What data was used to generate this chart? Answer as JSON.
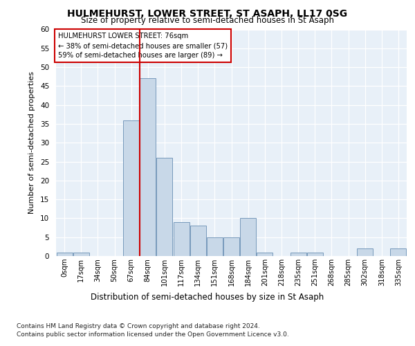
{
  "title": "HULMEHURST, LOWER STREET, ST ASAPH, LL17 0SG",
  "subtitle": "Size of property relative to semi-detached houses in St Asaph",
  "xlabel": "Distribution of semi-detached houses by size in St Asaph",
  "ylabel": "Number of semi-detached properties",
  "bin_labels": [
    "0sqm",
    "17sqm",
    "34sqm",
    "50sqm",
    "67sqm",
    "84sqm",
    "101sqm",
    "117sqm",
    "134sqm",
    "151sqm",
    "168sqm",
    "184sqm",
    "201sqm",
    "218sqm",
    "235sqm",
    "251sqm",
    "268sqm",
    "285sqm",
    "302sqm",
    "318sqm",
    "335sqm"
  ],
  "bar_heights": [
    1,
    1,
    0,
    0,
    36,
    47,
    26,
    9,
    8,
    5,
    5,
    10,
    1,
    0,
    1,
    1,
    0,
    0,
    2,
    0,
    2
  ],
  "bar_color": "#c8d8e8",
  "bar_edge_color": "#7799bb",
  "vline_color": "#cc0000",
  "annotation_title": "HULMEHURST LOWER STREET: 76sqm",
  "annotation_line1": "← 38% of semi-detached houses are smaller (57)",
  "annotation_line2": "59% of semi-detached houses are larger (89) →",
  "annotation_box_color": "#ffffff",
  "annotation_box_edge": "#cc0000",
  "ylim": [
    0,
    60
  ],
  "yticks": [
    0,
    5,
    10,
    15,
    20,
    25,
    30,
    35,
    40,
    45,
    50,
    55,
    60
  ],
  "footer_line1": "Contains HM Land Registry data © Crown copyright and database right 2024.",
  "footer_line2": "Contains public sector information licensed under the Open Government Licence v3.0.",
  "plot_bg_color": "#e8f0f8"
}
